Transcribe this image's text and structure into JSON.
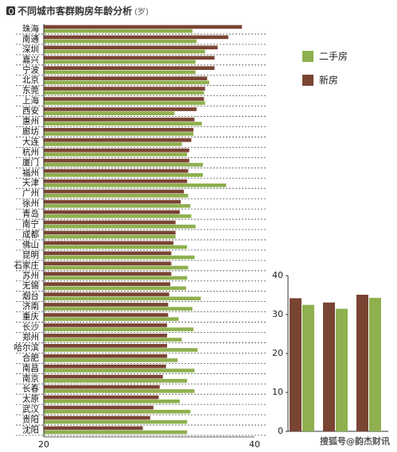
{
  "title": "不同城市客群购房年龄分析",
  "unit": "(岁)",
  "colors": {
    "second_hand": "#8fb04f",
    "new_home": "#7a4433"
  },
  "legend": {
    "second_hand_label": "二手房",
    "new_home_label": "新房"
  },
  "watermark": "搜狐号@韵杰财讯",
  "chart_data": [
    {
      "type": "bar",
      "orientation": "horizontal",
      "xlim": [
        20,
        40
      ],
      "x_ticks": [
        "20",
        "40"
      ],
      "categories": [
        "珠海",
        "南通",
        "深圳",
        "嘉兴",
        "宁波",
        "北京",
        "东莞",
        "上海",
        "西安",
        "惠州",
        "廊坊",
        "大连",
        "杭州",
        "厦门",
        "福州",
        "天津",
        "广州",
        "徐州",
        "青岛",
        "南宁",
        "成都",
        "佛山",
        "昆明",
        "石家庄",
        "苏州",
        "无锡",
        "烟台",
        "济南",
        "重庆",
        "长沙",
        "郑州",
        "哈尔滨",
        "合肥",
        "南昌",
        "南京",
        "长春",
        "太原",
        "武汉",
        "贵阳",
        "沈阳"
      ],
      "series": [
        {
          "name": "新房",
          "values": [
            38.8,
            37.5,
            36.5,
            36.2,
            36.2,
            35.5,
            35.3,
            35.2,
            34.5,
            34.3,
            34.2,
            34.0,
            33.8,
            33.8,
            33.7,
            33.6,
            33.3,
            33.0,
            32.9,
            32.5,
            32.5,
            32.3,
            32.1,
            32.1,
            32.1,
            32.0,
            31.9,
            31.8,
            31.8,
            31.7,
            31.7,
            31.7,
            31.7,
            31.6,
            31.3,
            31.0,
            30.9,
            30.4,
            30.1,
            29.4
          ]
        },
        {
          "name": "二手房",
          "values": [
            34.1,
            34.5,
            35.3,
            34.4,
            34.4,
            35.7,
            35.2,
            35.3,
            32.4,
            35.0,
            34.2,
            33.1,
            33.6,
            35.1,
            35.1,
            37.3,
            33.7,
            33.9,
            34.0,
            34.4,
            32.5,
            33.6,
            34.3,
            33.7,
            33.6,
            33.5,
            34.9,
            34.1,
            32.8,
            34.2,
            33.1,
            34.6,
            32.7,
            34.3,
            33.6,
            34.3,
            32.9,
            33.9,
            33.6,
            33.6
          ]
        }
      ]
    },
    {
      "type": "bar",
      "ylim": [
        0,
        40
      ],
      "y_ticks": [
        "0",
        "10",
        "20",
        "30",
        "40"
      ],
      "categories": [
        "",
        "",
        ""
      ],
      "series": [
        {
          "name": "新房",
          "values": [
            34.2,
            33.1,
            35.1
          ]
        },
        {
          "name": "二手房",
          "values": [
            32.5,
            31.5,
            34.3
          ]
        }
      ]
    }
  ]
}
